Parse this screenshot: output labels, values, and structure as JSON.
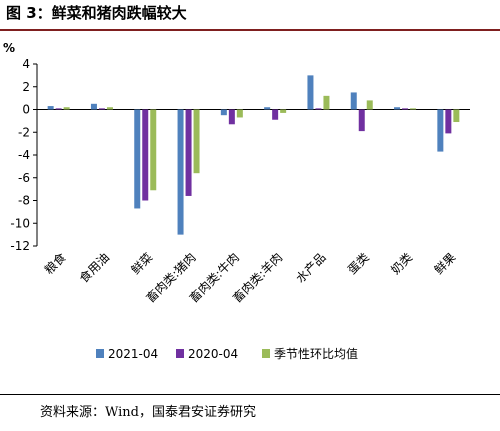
{
  "header": {
    "title": "图 3：鲜菜和猪肉跌幅较大"
  },
  "footer": {
    "source": "资料来源：Wind，国泰君安证券研究"
  },
  "colors": {
    "series1": "#4f81bd",
    "series2": "#7030a0",
    "series3": "#9bbb59",
    "title_rule": "#7f1f1f"
  },
  "chart_data": {
    "type": "bar",
    "ylabel": "%",
    "ylim": [
      -12,
      4
    ],
    "yticks": [
      4,
      2,
      0,
      -2,
      -4,
      -6,
      -8,
      -10,
      -12
    ],
    "grid": false,
    "legend_position": "bottom",
    "categories": [
      "粮食",
      "食用油",
      "鲜菜",
      "畜肉类:猪肉",
      "畜肉类:牛肉",
      "畜肉类:羊肉",
      "水产品",
      "蛋类",
      "奶类",
      "鲜果"
    ],
    "series": [
      {
        "name": "2021-04",
        "values": [
          0.3,
          0.5,
          -8.7,
          -11.0,
          -0.5,
          0.2,
          3.0,
          1.5,
          0.2,
          -3.7
        ]
      },
      {
        "name": "2020-04",
        "values": [
          0.1,
          0.1,
          -8.0,
          -7.6,
          -1.3,
          -0.9,
          0.1,
          -1.9,
          0.1,
          -2.1
        ]
      },
      {
        "name": "季节性环比均值",
        "values": [
          0.2,
          0.2,
          -7.1,
          -5.6,
          -0.7,
          -0.3,
          1.2,
          0.8,
          0.1,
          -1.1
        ]
      }
    ]
  }
}
